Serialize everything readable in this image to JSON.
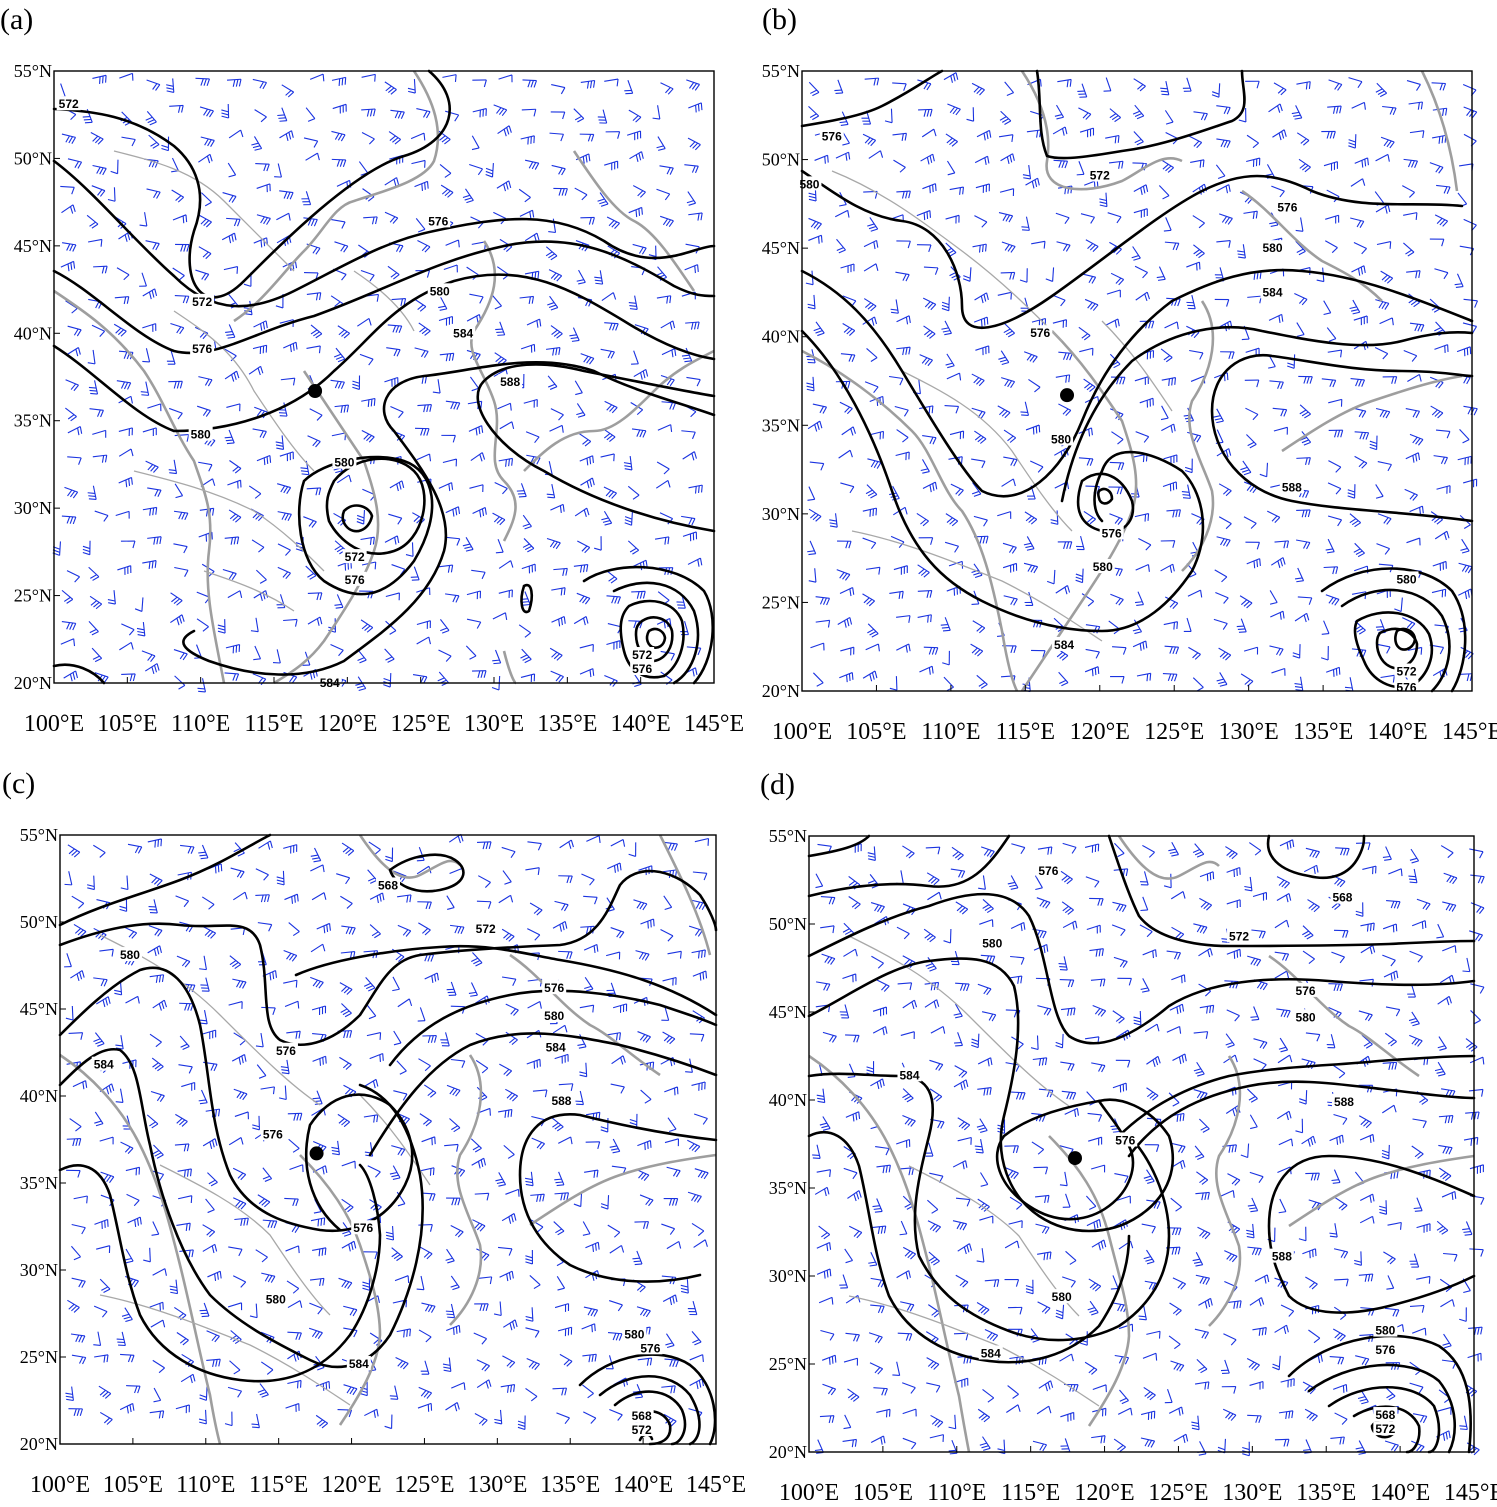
{
  "panels": [
    {
      "id": "a",
      "label": "(a)",
      "contour_labels": [
        {
          "text": "572",
          "lon": 101.0,
          "lat": 53.1
        },
        {
          "text": "572",
          "lon": 110.1,
          "lat": 41.8
        },
        {
          "text": "576",
          "lon": 110.1,
          "lat": 39.1
        },
        {
          "text": "580",
          "lon": 110.0,
          "lat": 34.2
        },
        {
          "text": "576",
          "lon": 126.2,
          "lat": 46.4
        },
        {
          "text": "580",
          "lon": 126.3,
          "lat": 42.4
        },
        {
          "text": "584",
          "lon": 127.9,
          "lat": 40.0
        },
        {
          "text": "588",
          "lon": 131.1,
          "lat": 37.2
        },
        {
          "text": "580",
          "lon": 119.8,
          "lat": 32.6
        },
        {
          "text": "572",
          "lon": 120.5,
          "lat": 27.2
        },
        {
          "text": "576",
          "lon": 120.5,
          "lat": 25.9
        },
        {
          "text": "572",
          "lon": 140.1,
          "lat": 21.6
        },
        {
          "text": "576",
          "lon": 140.1,
          "lat": 20.8
        },
        {
          "text": "584",
          "lon": 118.8,
          "lat": 20.0
        }
      ],
      "markers": [
        {
          "lon": 117.8,
          "lat": 36.7
        }
      ]
    },
    {
      "id": "b",
      "label": "(b)",
      "contour_labels": [
        {
          "text": "576",
          "lon": 102.0,
          "lat": 51.3
        },
        {
          "text": "572",
          "lon": 120.0,
          "lat": 49.1
        },
        {
          "text": "580",
          "lon": 100.5,
          "lat": 48.6
        },
        {
          "text": "576",
          "lon": 132.6,
          "lat": 47.3
        },
        {
          "text": "580",
          "lon": 131.6,
          "lat": 45.0
        },
        {
          "text": "584",
          "lon": 131.6,
          "lat": 42.5
        },
        {
          "text": "576",
          "lon": 116.0,
          "lat": 40.2
        },
        {
          "text": "580",
          "lon": 117.4,
          "lat": 34.2
        },
        {
          "text": "588",
          "lon": 132.9,
          "lat": 31.5
        },
        {
          "text": "576",
          "lon": 120.8,
          "lat": 28.9
        },
        {
          "text": "580",
          "lon": 120.2,
          "lat": 27.0
        },
        {
          "text": "584",
          "lon": 117.6,
          "lat": 22.6
        },
        {
          "text": "580",
          "lon": 140.6,
          "lat": 26.3
        },
        {
          "text": "572",
          "lon": 140.6,
          "lat": 21.1
        },
        {
          "text": "576",
          "lon": 140.6,
          "lat": 20.2
        }
      ],
      "markers": [
        {
          "lon": 117.8,
          "lat": 36.7
        }
      ]
    },
    {
      "id": "c",
      "label": "(c)",
      "contour_labels": [
        {
          "text": "568",
          "lon": 122.5,
          "lat": 52.1
        },
        {
          "text": "572",
          "lon": 129.2,
          "lat": 49.6
        },
        {
          "text": "580",
          "lon": 104.8,
          "lat": 48.1
        },
        {
          "text": "576",
          "lon": 133.9,
          "lat": 46.2
        },
        {
          "text": "580",
          "lon": 133.9,
          "lat": 44.6
        },
        {
          "text": "584",
          "lon": 134.0,
          "lat": 42.8
        },
        {
          "text": "576",
          "lon": 115.5,
          "lat": 42.6
        },
        {
          "text": "584",
          "lon": 103.0,
          "lat": 41.8
        },
        {
          "text": "588",
          "lon": 134.4,
          "lat": 39.7
        },
        {
          "text": "576",
          "lon": 114.6,
          "lat": 37.8
        },
        {
          "text": "576",
          "lon": 120.8,
          "lat": 32.4
        },
        {
          "text": "580",
          "lon": 114.8,
          "lat": 28.3
        },
        {
          "text": "584",
          "lon": 120.5,
          "lat": 24.6
        },
        {
          "text": "580",
          "lon": 139.4,
          "lat": 26.3
        },
        {
          "text": "576",
          "lon": 140.5,
          "lat": 25.5
        },
        {
          "text": "568",
          "lon": 139.9,
          "lat": 21.6
        },
        {
          "text": "572",
          "lon": 139.9,
          "lat": 20.8
        }
      ],
      "markers": [
        {
          "lon": 117.6,
          "lat": 36.7
        }
      ]
    },
    {
      "id": "d",
      "label": "(d)",
      "contour_labels": [
        {
          "text": "576",
          "lon": 116.2,
          "lat": 53.0
        },
        {
          "text": "568",
          "lon": 136.1,
          "lat": 51.5
        },
        {
          "text": "572",
          "lon": 129.1,
          "lat": 49.3
        },
        {
          "text": "580",
          "lon": 112.4,
          "lat": 48.9
        },
        {
          "text": "576",
          "lon": 133.6,
          "lat": 46.2
        },
        {
          "text": "580",
          "lon": 133.6,
          "lat": 44.7
        },
        {
          "text": "584",
          "lon": 106.8,
          "lat": 41.4
        },
        {
          "text": "588",
          "lon": 136.2,
          "lat": 39.9
        },
        {
          "text": "576",
          "lon": 121.4,
          "lat": 37.7
        },
        {
          "text": "580",
          "lon": 117.1,
          "lat": 28.8
        },
        {
          "text": "588",
          "lon": 132.0,
          "lat": 31.1
        },
        {
          "text": "584",
          "lon": 112.3,
          "lat": 25.6
        },
        {
          "text": "580",
          "lon": 139.0,
          "lat": 26.9
        },
        {
          "text": "576",
          "lon": 139.0,
          "lat": 25.8
        },
        {
          "text": "568",
          "lon": 139.0,
          "lat": 22.1
        },
        {
          "text": "572",
          "lon": 139.0,
          "lat": 21.3
        }
      ],
      "markers": [
        {
          "lon": 118.0,
          "lat": 36.7
        }
      ]
    }
  ],
  "lon_ticks": [
    "100°E",
    "105°E",
    "110°E",
    "115°E",
    "120°E",
    "125°E",
    "130°E",
    "135°E",
    "140°E",
    "145°E"
  ],
  "lat_ticks": [
    "20°N",
    "25°N",
    "30°N",
    "35°N",
    "40°N",
    "45°N",
    "50°N",
    "55°N"
  ],
  "colors": {
    "contour": "#000000",
    "wind_barb": "#1a33e0",
    "coastline": "#9e9e9e",
    "marker": "#000000"
  }
}
